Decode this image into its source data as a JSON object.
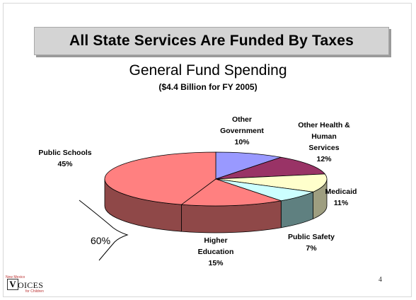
{
  "title": "All State Services Are Funded By Taxes",
  "subtitle": "General Fund Spending",
  "subtitle2": "($4.4 Billion for FY 2005)",
  "page_number": "4",
  "logo": {
    "small_top": "New Mexico",
    "letter": "V",
    "word": "OICES",
    "small_bottom": "for Children"
  },
  "brace_text": "60%",
  "chart_data": {
    "type": "pie",
    "title": "General Fund Spending",
    "subtitle": "($4.4 Billion for FY 2005)",
    "slices": [
      {
        "label": "Other Government",
        "value": 10,
        "pct_text": "10%",
        "top_color": "#9999ff",
        "side_color": "#5f5fae"
      },
      {
        "label": "Other Health & Human Services",
        "value": 12,
        "pct_text": "12%",
        "top_color": "#993366",
        "side_color": "#5e1f3f"
      },
      {
        "label": "Medicaid",
        "value": 11,
        "pct_text": "11%",
        "top_color": "#ffffcc",
        "side_color": "#9e9e80"
      },
      {
        "label": "Public Safety",
        "value": 7,
        "pct_text": "7%",
        "top_color": "#ccffff",
        "side_color": "#5f8080"
      },
      {
        "label": "Higher Education",
        "value": 15,
        "pct_text": "15%",
        "top_color": "#ff8080",
        "side_color": "#8f4848"
      },
      {
        "label": "Public Schools",
        "value": 45,
        "pct_text": "45%",
        "top_color": "#ff8080",
        "side_color": "#8f4848"
      }
    ]
  }
}
